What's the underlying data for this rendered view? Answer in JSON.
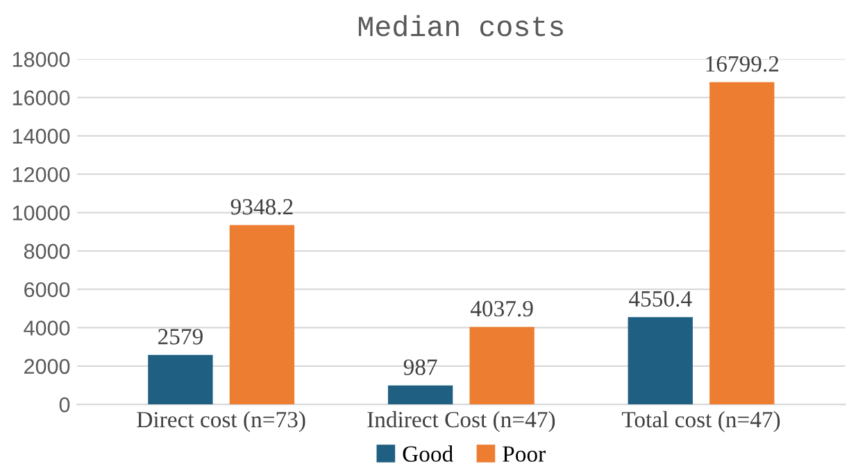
{
  "chart_data": {
    "type": "bar",
    "title": "Median costs",
    "categories": [
      "Direct cost (n=73)",
      "Indirect Cost (n=47)",
      "Total cost (n=47)"
    ],
    "series": [
      {
        "name": "Good",
        "color": "#1f5f82",
        "values": [
          2579,
          987,
          4550.4
        ]
      },
      {
        "name": "Poor",
        "color": "#ed7d31",
        "values": [
          9348.2,
          4037.9,
          16799.2
        ]
      }
    ],
    "ylim": [
      0,
      18000
    ],
    "yticks": [
      0,
      2000,
      4000,
      6000,
      8000,
      10000,
      12000,
      14000,
      16000,
      18000
    ],
    "grid": "y",
    "legend": "bottom",
    "data_labels": true
  }
}
